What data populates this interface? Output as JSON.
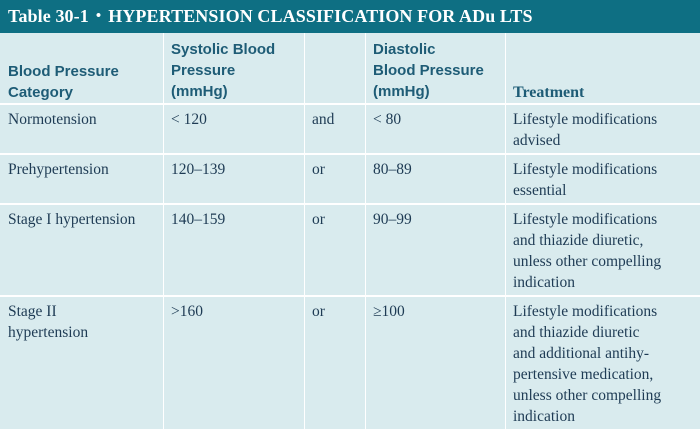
{
  "table": {
    "label": "Table 30-1",
    "bullet": "•",
    "title": "HYPERTENSION CLASSIFICATION FOR ADu LTS",
    "headers": {
      "category": [
        "Blood Pressure",
        "Category"
      ],
      "systolic": [
        "Systolic Blood",
        "Pressure",
        "(mmHg)"
      ],
      "connector": "",
      "diastolic": [
        "Diastolic",
        "Blood Pressure",
        "(mmHg)"
      ],
      "treatment": [
        "Treatment"
      ]
    },
    "rows": [
      {
        "category": [
          "Normotension"
        ],
        "systolic": "< 120",
        "connector": "and",
        "diastolic": "< 80",
        "treatment": [
          "Lifestyle modifications",
          "advised"
        ]
      },
      {
        "category": [
          "Prehypertension"
        ],
        "systolic": "120–139",
        "connector": "or",
        "diastolic": "80–89",
        "treatment": [
          "Lifestyle modifications",
          "essential"
        ]
      },
      {
        "category": [
          "Stage I hypertension"
        ],
        "systolic": "140–159",
        "connector": "or",
        "diastolic": "90–99",
        "treatment": [
          "Lifestyle modifications",
          "and thiazide diuretic,",
          "unless other compelling",
          "indication"
        ]
      },
      {
        "category": [
          "Stage II",
          "hypertension"
        ],
        "systolic": ">160",
        "connector": "or",
        "diastolic": "≥100",
        "treatment": [
          "Lifestyle modifications",
          "and thiazide diuretic",
          "and additional antihy-",
          "pertensive medication,",
          "unless other compelling",
          "indication"
        ]
      }
    ]
  }
}
